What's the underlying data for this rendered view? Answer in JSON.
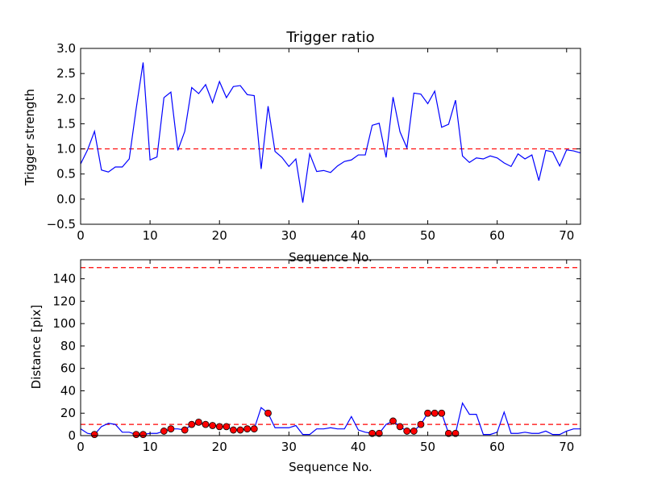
{
  "chart_data": [
    {
      "type": "line",
      "title": "Trigger ratio",
      "xlabel": "Sequence No.",
      "ylabel": "Trigger strength",
      "xlim": [
        0,
        72
      ],
      "ylim": [
        -0.5,
        3.0
      ],
      "xticks": [
        "0",
        "10",
        "20",
        "30",
        "40",
        "50",
        "60",
        "70"
      ],
      "yticks": [
        "−0.5",
        "0.0",
        "0.5",
        "1.0",
        "1.5",
        "2.0",
        "2.5",
        "3.0"
      ],
      "grid": false,
      "line_color": "#0000ff",
      "x": [
        0,
        1,
        2,
        3,
        4,
        5,
        6,
        7,
        8,
        9,
        10,
        11,
        12,
        13,
        14,
        15,
        16,
        17,
        18,
        19,
        20,
        21,
        22,
        23,
        24,
        25,
        26,
        27,
        28,
        29,
        30,
        31,
        32,
        33,
        34,
        35,
        36,
        37,
        38,
        39,
        40,
        41,
        42,
        43,
        44,
        45,
        46,
        47,
        48,
        49,
        50,
        51,
        52,
        53,
        54,
        55,
        56,
        57,
        58,
        59,
        60,
        61,
        62,
        63,
        64,
        65,
        66,
        67,
        68,
        69,
        70,
        71,
        72
      ],
      "y": [
        0.7,
        0.98,
        1.35,
        0.58,
        0.54,
        0.64,
        0.64,
        0.8,
        1.8,
        2.72,
        0.78,
        0.84,
        2.02,
        2.13,
        0.97,
        1.35,
        2.22,
        2.1,
        2.28,
        1.92,
        2.34,
        2.02,
        2.24,
        2.26,
        2.08,
        2.06,
        0.6,
        1.85,
        0.95,
        0.83,
        0.65,
        0.8,
        -0.07,
        0.9,
        0.55,
        0.57,
        0.53,
        0.66,
        0.75,
        0.78,
        0.88,
        0.88,
        1.47,
        1.51,
        0.83,
        2.03,
        1.34,
        1.02,
        2.11,
        2.09,
        1.9,
        2.15,
        1.43,
        1.49,
        1.97,
        0.86,
        0.73,
        0.82,
        0.8,
        0.86,
        0.82,
        0.72,
        0.65,
        0.9,
        0.8,
        0.88,
        0.37,
        0.97,
        0.94,
        0.66,
        0.98,
        0.96,
        0.92
      ],
      "reference_line": {
        "y": 1.0,
        "color": "#ff0000",
        "style": "dashed"
      }
    },
    {
      "type": "line",
      "title": "",
      "xlabel": "Sequence No.",
      "ylabel": "Distance [pix]",
      "xlim": [
        0,
        72
      ],
      "ylim": [
        0,
        157
      ],
      "xticks": [
        "0",
        "10",
        "20",
        "30",
        "40",
        "50",
        "60",
        "70"
      ],
      "yticks": [
        "0",
        "20",
        "40",
        "60",
        "80",
        "100",
        "120",
        "140"
      ],
      "grid": false,
      "line_color": "#0000ff",
      "x": [
        0,
        1,
        2,
        3,
        4,
        5,
        6,
        7,
        8,
        9,
        10,
        11,
        12,
        13,
        14,
        15,
        16,
        17,
        18,
        19,
        20,
        21,
        22,
        23,
        24,
        25,
        26,
        27,
        28,
        29,
        30,
        31,
        32,
        33,
        34,
        35,
        36,
        37,
        38,
        39,
        40,
        41,
        42,
        43,
        44,
        45,
        46,
        47,
        48,
        49,
        50,
        51,
        52,
        53,
        54,
        55,
        56,
        57,
        58,
        59,
        60,
        61,
        62,
        63,
        64,
        65,
        66,
        67,
        68,
        69,
        70,
        71,
        72
      ],
      "y": [
        6,
        2,
        1,
        8,
        11,
        10,
        3,
        3,
        1,
        1,
        2,
        2,
        4,
        6,
        6,
        5,
        10,
        12,
        10,
        9,
        8,
        8,
        5,
        5,
        6,
        6,
        25,
        20,
        7,
        7,
        7,
        9,
        1,
        1,
        6,
        6,
        7,
        6,
        6,
        17,
        5,
        3,
        2,
        2,
        10,
        13,
        8,
        4,
        4,
        10,
        20,
        20,
        20,
        2,
        2,
        29,
        19,
        19,
        1,
        1,
        3,
        21,
        2,
        2,
        3,
        2,
        2,
        4,
        1,
        1,
        4,
        6,
        6
      ],
      "marker_color": "#ff0000",
      "markers": {
        "x": [
          2,
          8,
          9,
          12,
          13,
          15,
          16,
          17,
          18,
          19,
          20,
          21,
          22,
          23,
          24,
          25,
          27,
          42,
          43,
          45,
          46,
          47,
          48,
          49,
          50,
          51,
          52,
          53,
          54
        ],
        "y": [
          1,
          1,
          1,
          4,
          6,
          5,
          10,
          12,
          10,
          9,
          8,
          8,
          5,
          5,
          6,
          6,
          20,
          2,
          2,
          13,
          8,
          4,
          4,
          10,
          20,
          20,
          20,
          2,
          2
        ]
      },
      "reference_lines": [
        {
          "y": 10,
          "color": "#ff0000",
          "style": "dashed"
        },
        {
          "y": 150,
          "color": "#ff0000",
          "style": "dashed"
        }
      ]
    }
  ]
}
